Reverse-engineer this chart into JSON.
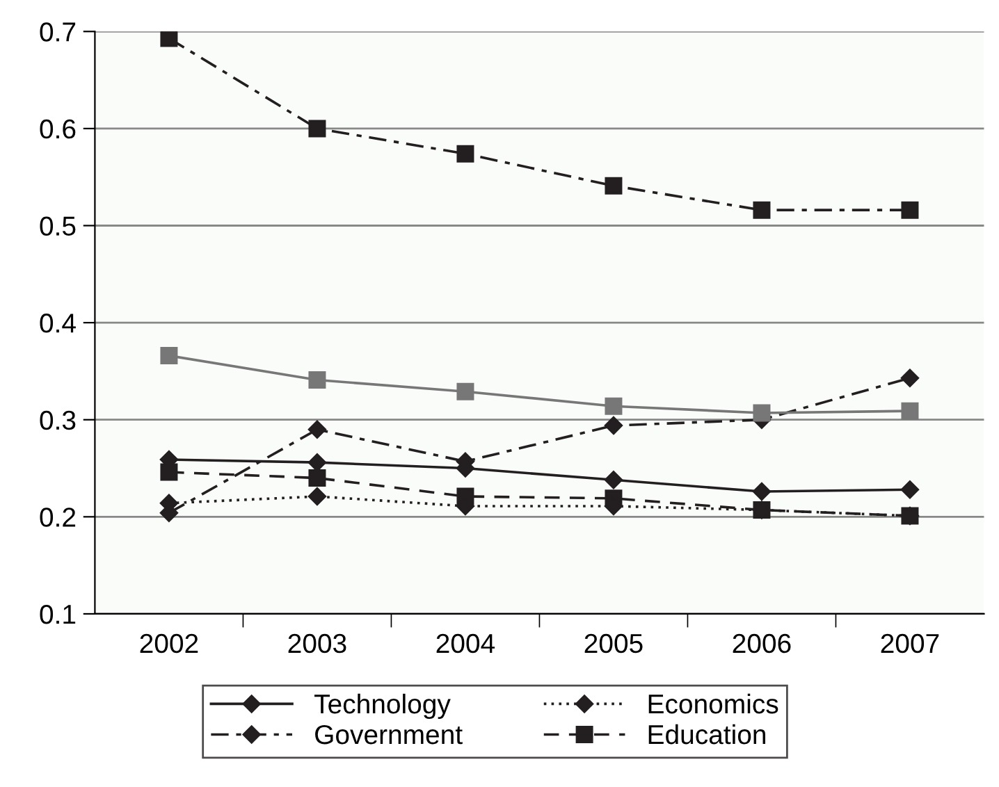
{
  "chart_data": {
    "type": "line",
    "categories": [
      "2002",
      "2003",
      "2004",
      "2005",
      "2006",
      "2007"
    ],
    "series": [
      {
        "color": "#231f20",
        "marker": "square",
        "line_style": "dashdot",
        "values": [
          0.693,
          0.6,
          0.574,
          0.541,
          0.516,
          0.516
        ]
      },
      {
        "color": "#777777",
        "marker": "square",
        "line_style": "solid",
        "values": [
          0.366,
          0.341,
          0.329,
          0.314,
          0.307,
          0.309
        ]
      },
      {
        "name": "Technology",
        "color": "#231f20",
        "marker": "diamond",
        "line_style": "solid",
        "values": [
          0.259,
          0.256,
          0.25,
          0.238,
          0.226,
          0.228
        ]
      },
      {
        "name": "Government",
        "color": "#231f20",
        "marker": "diamond",
        "line_style": "dashdot",
        "values": [
          0.204,
          0.29,
          0.257,
          0.294,
          0.3,
          0.343
        ]
      },
      {
        "name": "Economics",
        "color": "#231f20",
        "marker": "diamond",
        "line_style": "dotted",
        "values": [
          0.214,
          0.221,
          0.211,
          0.211,
          0.207,
          0.201
        ]
      },
      {
        "name": "Education",
        "color": "#231f20",
        "marker": "square",
        "line_style": "dashed",
        "values": [
          0.246,
          0.24,
          0.221,
          0.219,
          0.207,
          0.201
        ]
      }
    ],
    "ylim": [
      0.1,
      0.7
    ],
    "yticks": [
      0.1,
      0.2,
      0.3,
      0.4,
      0.5,
      0.6,
      0.7
    ],
    "grid": "y",
    "legend": "bottom"
  }
}
